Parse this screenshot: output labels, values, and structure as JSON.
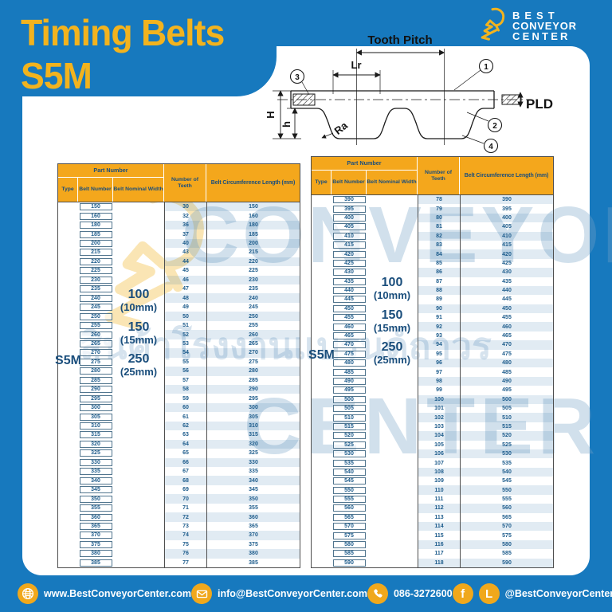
{
  "page": {
    "title": "Timing Belts S5M"
  },
  "logo": {
    "icon": "goat-icon",
    "line1": "BEST",
    "line2": "CONVEYOR",
    "line3": "CENTER"
  },
  "colors": {
    "blue": "#1779BE",
    "header_orange": "#F4A71C",
    "navy_text": "#1A4E7C",
    "title_yellow": "#F2B31E",
    "stripe_blue": "#DCE9F3",
    "footer_icon_yellow": "#F0A81C"
  },
  "diagram": {
    "labels": {
      "tooth_pitch": "Tooth Pitch",
      "lr": "Lr",
      "pld": "PLD",
      "big_h": "H",
      "small_h": "h",
      "ra": "Ra",
      "c1": "1",
      "c2": "2",
      "c3": "3",
      "c4": "4"
    }
  },
  "tables": [
    {
      "headers": {
        "part_number": "Part Number",
        "type": "Type",
        "belt_number": "Belt Number",
        "belt_nominal_width": "Belt Nominal Width",
        "teeth": "Number of Teeth",
        "length": "Belt Circumference Length (mm)"
      },
      "type_value": "S5M",
      "widths": [
        "100",
        "(10mm)",
        "150",
        "(15mm)",
        "250",
        "(25mm)"
      ],
      "rows": [
        [
          "150",
          "30",
          "150"
        ],
        [
          "160",
          "32",
          "160"
        ],
        [
          "180",
          "36",
          "180"
        ],
        [
          "185",
          "37",
          "185"
        ],
        [
          "200",
          "40",
          "200"
        ],
        [
          "215",
          "43",
          "215"
        ],
        [
          "220",
          "44",
          "220"
        ],
        [
          "225",
          "45",
          "225"
        ],
        [
          "230",
          "46",
          "230"
        ],
        [
          "235",
          "47",
          "235"
        ],
        [
          "240",
          "48",
          "240"
        ],
        [
          "245",
          "49",
          "245"
        ],
        [
          "250",
          "50",
          "250"
        ],
        [
          "255",
          "51",
          "255"
        ],
        [
          "260",
          "52",
          "260"
        ],
        [
          "265",
          "53",
          "265"
        ],
        [
          "270",
          "54",
          "270"
        ],
        [
          "275",
          "55",
          "275"
        ],
        [
          "280",
          "56",
          "280"
        ],
        [
          "285",
          "57",
          "285"
        ],
        [
          "290",
          "58",
          "290"
        ],
        [
          "295",
          "59",
          "295"
        ],
        [
          "300",
          "60",
          "300"
        ],
        [
          "305",
          "61",
          "305"
        ],
        [
          "310",
          "62",
          "310"
        ],
        [
          "315",
          "63",
          "315"
        ],
        [
          "320",
          "64",
          "320"
        ],
        [
          "325",
          "65",
          "325"
        ],
        [
          "330",
          "66",
          "330"
        ],
        [
          "335",
          "67",
          "335"
        ],
        [
          "340",
          "68",
          "340"
        ],
        [
          "345",
          "69",
          "345"
        ],
        [
          "350",
          "70",
          "350"
        ],
        [
          "355",
          "71",
          "355"
        ],
        [
          "360",
          "72",
          "360"
        ],
        [
          "365",
          "73",
          "365"
        ],
        [
          "370",
          "74",
          "370"
        ],
        [
          "375",
          "75",
          "375"
        ],
        [
          "380",
          "76",
          "380"
        ],
        [
          "385",
          "77",
          "385"
        ]
      ]
    },
    {
      "headers": {
        "part_number": "Part Number",
        "type": "Type",
        "belt_number": "Belt Number",
        "belt_nominal_width": "Belt Nominal Width",
        "teeth": "Number of Teeth",
        "length": "Belt Circumference Length (mm)"
      },
      "type_value": "S5M",
      "widths": [
        "100",
        "(10mm)",
        "150",
        "(15mm)",
        "250",
        "(25mm)"
      ],
      "rows": [
        [
          "390",
          "78",
          "390"
        ],
        [
          "395",
          "79",
          "395"
        ],
        [
          "400",
          "80",
          "400"
        ],
        [
          "405",
          "81",
          "405"
        ],
        [
          "410",
          "82",
          "410"
        ],
        [
          "415",
          "83",
          "415"
        ],
        [
          "420",
          "84",
          "420"
        ],
        [
          "425",
          "85",
          "425"
        ],
        [
          "430",
          "86",
          "430"
        ],
        [
          "435",
          "87",
          "435"
        ],
        [
          "440",
          "88",
          "440"
        ],
        [
          "445",
          "89",
          "445"
        ],
        [
          "450",
          "90",
          "450"
        ],
        [
          "455",
          "91",
          "455"
        ],
        [
          "460",
          "92",
          "460"
        ],
        [
          "465",
          "93",
          "465"
        ],
        [
          "470",
          "94",
          "470"
        ],
        [
          "475",
          "95",
          "475"
        ],
        [
          "480",
          "96",
          "480"
        ],
        [
          "485",
          "97",
          "485"
        ],
        [
          "490",
          "98",
          "490"
        ],
        [
          "495",
          "99",
          "495"
        ],
        [
          "500",
          "100",
          "500"
        ],
        [
          "505",
          "101",
          "505"
        ],
        [
          "510",
          "102",
          "510"
        ],
        [
          "515",
          "103",
          "515"
        ],
        [
          "520",
          "104",
          "520"
        ],
        [
          "525",
          "105",
          "525"
        ],
        [
          "530",
          "106",
          "530"
        ],
        [
          "535",
          "107",
          "535"
        ],
        [
          "540",
          "108",
          "540"
        ],
        [
          "545",
          "109",
          "545"
        ],
        [
          "550",
          "110",
          "550"
        ],
        [
          "555",
          "111",
          "555"
        ],
        [
          "560",
          "112",
          "560"
        ],
        [
          "565",
          "113",
          "565"
        ],
        [
          "570",
          "114",
          "570"
        ],
        [
          "575",
          "115",
          "575"
        ],
        [
          "580",
          "116",
          "580"
        ],
        [
          "585",
          "117",
          "585"
        ],
        [
          "590",
          "118",
          "590"
        ]
      ]
    }
  ],
  "watermark": {
    "word1": "CONVEYOR",
    "thai": "สินค้าโรงงานแบรนด์ถาวร",
    "word2": "CENTER"
  },
  "footer": {
    "website": "www.BestConveyorCenter.com",
    "email": "info@BestConveyorCenter.com",
    "phone": "086-3272600",
    "social": "@BestConveyorCenter"
  }
}
